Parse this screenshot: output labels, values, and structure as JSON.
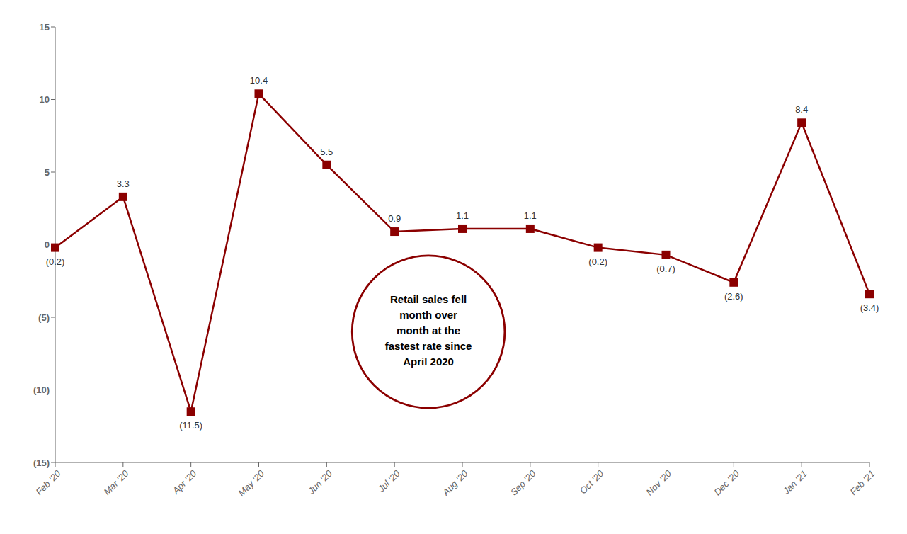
{
  "chart_data": {
    "type": "line",
    "categories": [
      "Feb '20",
      "Mar '20",
      "Apr '20",
      "May '20",
      "Jun '20",
      "Jul '20",
      "Aug '20",
      "Sep '20",
      "Oct '20",
      "Nov '20",
      "Dec '20",
      "Jan '21",
      "Feb '21"
    ],
    "values": [
      -0.2,
      3.3,
      -11.5,
      10.4,
      5.5,
      0.9,
      1.1,
      1.1,
      -0.2,
      -0.7,
      -2.6,
      8.4,
      -3.4
    ],
    "value_labels": [
      "(0.2)",
      "3.3",
      "(11.5)",
      "10.4",
      "5.5",
      "0.9",
      "1.1",
      "1.1",
      "(0.2)",
      "(0.7)",
      "(2.6)",
      "8.4",
      "(3.4)"
    ],
    "data_labels": true,
    "ylim": [
      -15,
      15
    ],
    "yticks": [
      {
        "value": -15,
        "label": "(15)"
      },
      {
        "value": -10,
        "label": "(10)"
      },
      {
        "value": -5,
        "label": "(5)"
      },
      0,
      5,
      10,
      15
    ],
    "annotations": [
      "Retail sales fell\nmonth over\nmonth at the\nfastest rate since\nApril 2020"
    ],
    "color": "#8B0000",
    "marker": "square",
    "grid": false
  }
}
